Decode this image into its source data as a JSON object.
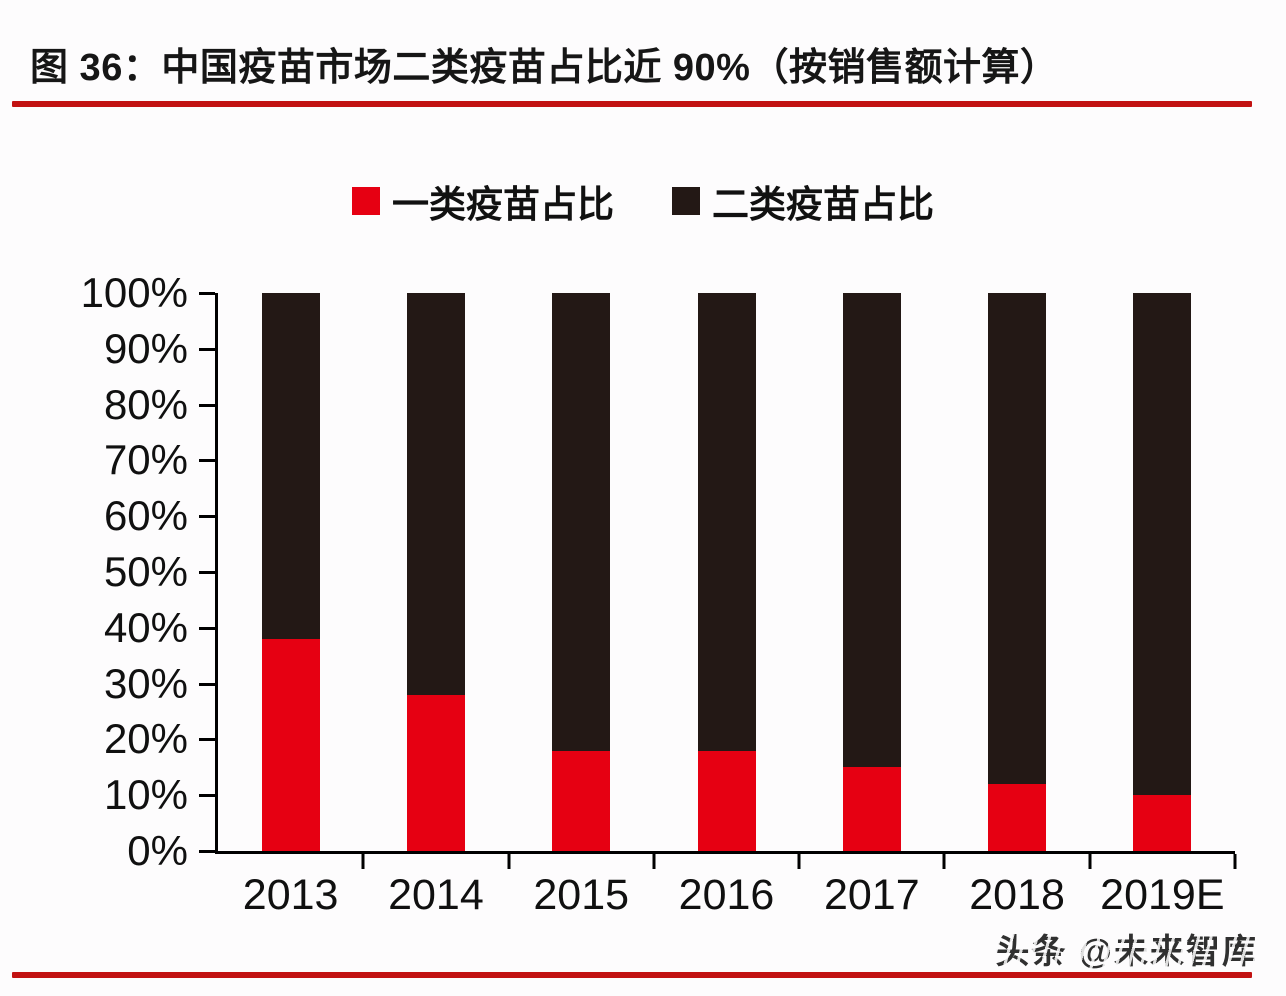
{
  "figure": {
    "title": "图 36：中国疫苗市场二类疫苗占比近 90%（按销售额计算）",
    "watermark": "头条 @未来智库",
    "accent_color": "#c21212",
    "text_color": "#101010"
  },
  "chart_data": {
    "type": "bar",
    "stacked": true,
    "title": "中国疫苗市场二类疫苗占比近 90%（按销售额计算）",
    "categories": [
      "2013",
      "2014",
      "2015",
      "2016",
      "2017",
      "2018",
      "2019E"
    ],
    "series": [
      {
        "name": "一类疫苗占比",
        "color": "#e60012",
        "values": [
          38,
          28,
          18,
          18,
          15,
          12,
          10
        ]
      },
      {
        "name": "二类疫苗占比",
        "color": "#231815",
        "values": [
          62,
          72,
          82,
          82,
          85,
          88,
          90
        ]
      }
    ],
    "xlabel": "",
    "ylabel": "",
    "ylim": [
      0,
      100
    ],
    "ytick_step": 10,
    "ytick_labels": [
      "0%",
      "10%",
      "20%",
      "30%",
      "40%",
      "50%",
      "60%",
      "70%",
      "80%",
      "90%",
      "100%"
    ],
    "legend_position": "top",
    "grid": false
  }
}
